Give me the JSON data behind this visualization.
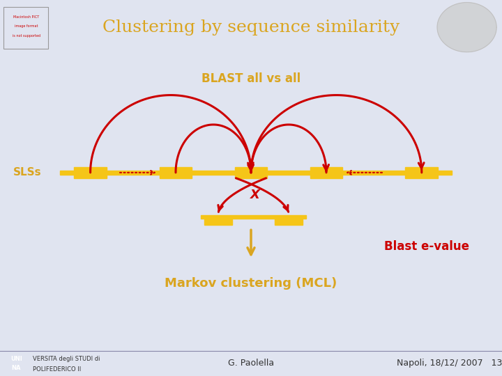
{
  "title": "Clustering by sequence similarity",
  "title_color": "#DAA520",
  "title_fontsize": 18,
  "bg_color": "#E0E4F0",
  "header_bg": "#F5F5F5",
  "sls_label": "SLSs",
  "sls_label_color": "#DAA520",
  "blast_label": "BLAST all vs all",
  "blast_label_color": "#DAA520",
  "blast_evalue_label": "Blast e-value",
  "blast_evalue_color": "#CC0000",
  "markov_label": "Markov clustering (MCL)",
  "markov_label_color": "#DAA520",
  "footer_left": "G. Paolella",
  "footer_right": "Napoli, 18/12/ 2007   13",
  "arrow_color": "#CC0000",
  "bar_color": "#F5C518",
  "down_arrow_color": "#DAA520",
  "x_label": "X",
  "x_label_color": "#CC0000",
  "footer_bg": "#E0E4F0"
}
